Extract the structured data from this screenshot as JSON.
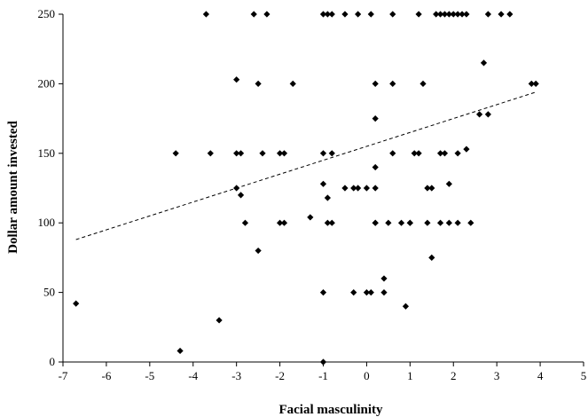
{
  "chart_data": {
    "type": "scatter",
    "title": "",
    "xlabel": "Facial masculinity",
    "ylabel": "Dollar amount invested",
    "xlim": [
      -7,
      5
    ],
    "ylim": [
      0,
      250
    ],
    "x_ticks": [
      -7,
      -6,
      -5,
      -4,
      -3,
      -2,
      -1,
      0,
      1,
      2,
      3,
      4,
      5
    ],
    "y_ticks": [
      0,
      50,
      100,
      150,
      200,
      250
    ],
    "grid": false,
    "legend": "none",
    "marker_color": "#000000",
    "trendline": {
      "style": "dashed",
      "x": [
        -6.7,
        3.9
      ],
      "y": [
        88,
        194
      ]
    },
    "points": [
      [
        -6.7,
        42
      ],
      [
        -4.3,
        8
      ],
      [
        -3.4,
        30
      ],
      [
        -4.4,
        150
      ],
      [
        -3.6,
        150
      ],
      [
        -3.0,
        150
      ],
      [
        -2.9,
        150
      ],
      [
        -3.0,
        203
      ],
      [
        -3.0,
        125
      ],
      [
        -2.9,
        120
      ],
      [
        -2.8,
        100
      ],
      [
        -2.5,
        80
      ],
      [
        -2.5,
        200
      ],
      [
        -2.4,
        150
      ],
      [
        -2.0,
        150
      ],
      [
        -1.9,
        150
      ],
      [
        -2.0,
        100
      ],
      [
        -1.9,
        100
      ],
      [
        -1.7,
        200
      ],
      [
        -1.3,
        104
      ],
      [
        -1.0,
        0
      ],
      [
        -1.0,
        50
      ],
      [
        -1.0,
        128
      ],
      [
        -1.0,
        150
      ],
      [
        -0.9,
        100
      ],
      [
        -0.8,
        150
      ],
      [
        -0.8,
        100
      ],
      [
        -0.9,
        118
      ],
      [
        -0.5,
        125
      ],
      [
        -0.3,
        125
      ],
      [
        -0.2,
        125
      ],
      [
        -0.3,
        50
      ],
      [
        0.0,
        125
      ],
      [
        0.0,
        50
      ],
      [
        0.1,
        50
      ],
      [
        0.2,
        100
      ],
      [
        0.2,
        100
      ],
      [
        0.2,
        125
      ],
      [
        0.2,
        140
      ],
      [
        0.2,
        175
      ],
      [
        0.2,
        200
      ],
      [
        0.4,
        50
      ],
      [
        0.4,
        60
      ],
      [
        0.5,
        100
      ],
      [
        0.6,
        150
      ],
      [
        0.6,
        200
      ],
      [
        0.8,
        100
      ],
      [
        0.9,
        40
      ],
      [
        1.0,
        100
      ],
      [
        1.0,
        100
      ],
      [
        1.1,
        150
      ],
      [
        1.2,
        150
      ],
      [
        1.3,
        200
      ],
      [
        1.4,
        100
      ],
      [
        1.4,
        125
      ],
      [
        1.5,
        125
      ],
      [
        1.5,
        75
      ],
      [
        1.7,
        100
      ],
      [
        1.7,
        150
      ],
      [
        1.8,
        150
      ],
      [
        1.9,
        100
      ],
      [
        1.9,
        128
      ],
      [
        2.1,
        100
      ],
      [
        2.1,
        150
      ],
      [
        2.3,
        153
      ],
      [
        2.4,
        100
      ],
      [
        2.6,
        178
      ],
      [
        2.7,
        215
      ],
      [
        2.8,
        178
      ],
      [
        3.8,
        200
      ],
      [
        3.9,
        200
      ],
      [
        -3.7,
        250
      ],
      [
        -2.6,
        250
      ],
      [
        -2.3,
        250
      ],
      [
        -1.0,
        250
      ],
      [
        -0.9,
        250
      ],
      [
        -0.8,
        250
      ],
      [
        -0.5,
        250
      ],
      [
        -0.2,
        250
      ],
      [
        0.1,
        250
      ],
      [
        0.6,
        250
      ],
      [
        1.2,
        250
      ],
      [
        1.6,
        250
      ],
      [
        1.7,
        250
      ],
      [
        1.8,
        250
      ],
      [
        1.9,
        250
      ],
      [
        2.0,
        250
      ],
      [
        2.1,
        250
      ],
      [
        2.2,
        250
      ],
      [
        2.3,
        250
      ],
      [
        2.8,
        250
      ],
      [
        3.1,
        250
      ],
      [
        3.3,
        250
      ]
    ]
  }
}
